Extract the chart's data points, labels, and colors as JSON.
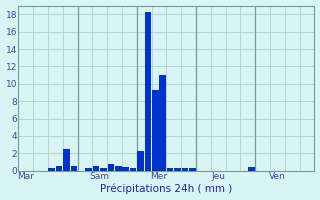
{
  "title": "Précipitations 24h ( mm )",
  "bar_color": "#0033cc",
  "bg_color": "#d8f4f4",
  "grid_color": "#b0cece",
  "axis_label_color": "#2222aa",
  "tick_color": "#444499",
  "ylim": [
    0,
    19
  ],
  "yticks": [
    0,
    2,
    4,
    6,
    8,
    10,
    12,
    14,
    16,
    18
  ],
  "xlim": [
    0,
    40
  ],
  "day_labels": [
    "Mar",
    "Sam",
    "Mer",
    "Jeu",
    "Ven"
  ],
  "day_positions": [
    0.5,
    10.5,
    18.5,
    26.5,
    34.5
  ],
  "vline_positions": [
    8,
    16,
    24,
    32
  ],
  "bars": [
    [
      0,
      0
    ],
    [
      1,
      0
    ],
    [
      2,
      0
    ],
    [
      3,
      0
    ],
    [
      4,
      0.3
    ],
    [
      5,
      0.5
    ],
    [
      6,
      2.5
    ],
    [
      7,
      0.5
    ],
    [
      8,
      0
    ],
    [
      9,
      0.3
    ],
    [
      10,
      0.6
    ],
    [
      11,
      0.3
    ],
    [
      12,
      0.8
    ],
    [
      13,
      0.6
    ],
    [
      14,
      0.4
    ],
    [
      15,
      0.3
    ],
    [
      16,
      2.3
    ],
    [
      17,
      18.3
    ],
    [
      18,
      9.3
    ],
    [
      19,
      11.0
    ],
    [
      20,
      0.3
    ],
    [
      21,
      0.3
    ],
    [
      22,
      0.3
    ],
    [
      23,
      0.3
    ],
    [
      24,
      0
    ],
    [
      25,
      0
    ],
    [
      26,
      0
    ],
    [
      27,
      0
    ],
    [
      28,
      0
    ],
    [
      29,
      0
    ],
    [
      30,
      0
    ],
    [
      31,
      0.4
    ],
    [
      32,
      0
    ],
    [
      33,
      0
    ],
    [
      34,
      0
    ],
    [
      35,
      0
    ]
  ]
}
